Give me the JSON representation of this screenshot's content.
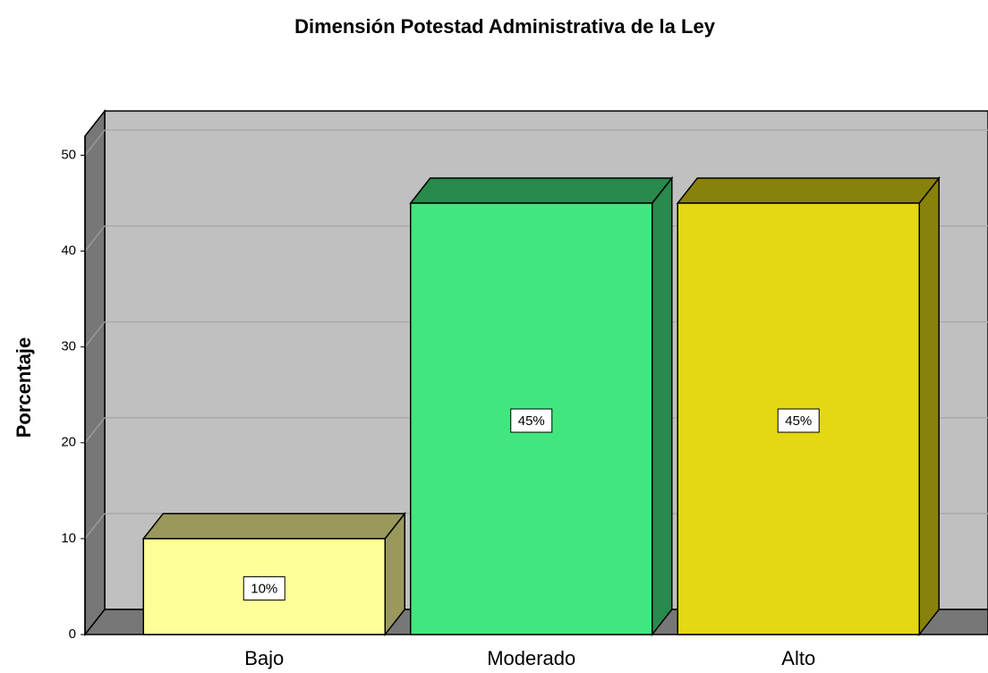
{
  "chart_data": {
    "type": "bar3d",
    "title": "Dimensión Potestad Administrativa de la Ley",
    "y_label": "Porcentaje",
    "categories": [
      "Bajo",
      "Moderado",
      "Alto"
    ],
    "values": [
      10,
      45,
      45
    ],
    "value_labels": [
      "10%",
      "45%",
      "45%"
    ],
    "colors": [
      "#ffff99",
      "#42e67f",
      "#e3d812"
    ],
    "ylim": [
      0,
      52
    ],
    "yticks": [
      0,
      10,
      20,
      30,
      40,
      50
    ],
    "grid": true
  }
}
